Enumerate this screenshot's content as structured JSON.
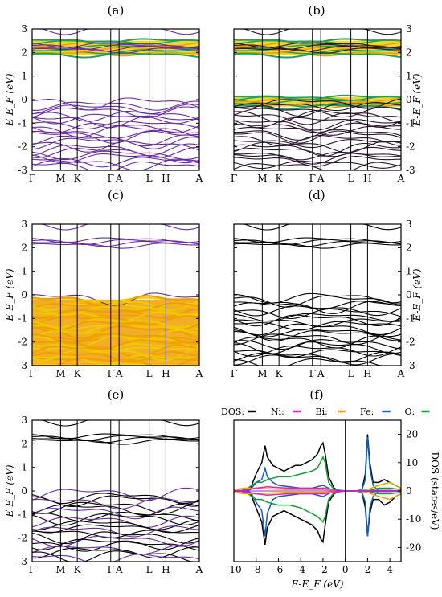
{
  "figure_labels": [
    "(a)",
    "(b)",
    "(c)",
    "(d)",
    "(e)",
    "(f)"
  ],
  "band_panels": {
    "ylabel": "E-E_F (eV)",
    "yticks": [
      "3",
      "2",
      "1",
      "0",
      "-1",
      "-2",
      "-3"
    ],
    "kpath_labels": [
      "Γ",
      "M",
      "K",
      "Γ",
      "A",
      "L",
      "H",
      "A"
    ]
  },
  "dos_panel": {
    "xlabel": "E-E_F (eV)",
    "ylabel": "DOS (states/eV)",
    "xticks": [
      "-10",
      "-8",
      "-6",
      "-4",
      "-2",
      "0",
      "2",
      "4"
    ],
    "yticks": [
      "20",
      "10",
      "0",
      "-10",
      "-20"
    ],
    "legend": [
      {
        "label": "DOS:",
        "color": "#000000"
      },
      {
        "label": "Ni:",
        "color": "#e020c0"
      },
      {
        "label": "Bi:",
        "color": "#f0a000"
      },
      {
        "label": "Fe:",
        "color": "#1060c0"
      },
      {
        "label": "O:",
        "color": "#10a030"
      }
    ]
  },
  "chart_data": [
    {
      "type": "line",
      "panel": "(a)",
      "description": "band structure, Bi/O weight highlighted in conduction bands",
      "xlabel": "",
      "ylabel": "E-E_F (eV)",
      "ylim": [
        -3,
        3
      ],
      "x_ticks": [
        "Γ",
        "M",
        "K",
        "Γ",
        "A",
        "L",
        "H",
        "A"
      ],
      "band_color": "#6a2ca8",
      "highlight": {
        "region": "conduction",
        "range": [
          1.9,
          2.5
        ],
        "colors": [
          "#f0d000",
          "#20a060"
        ]
      }
    },
    {
      "type": "line",
      "panel": "(b)",
      "xlabel": "",
      "ylabel": "E-E_F (eV)",
      "ylim": [
        -3,
        3
      ],
      "x_ticks": [
        "Γ",
        "M",
        "K",
        "Γ",
        "A",
        "L",
        "H",
        "A"
      ],
      "band_color": "#2a1530",
      "highlight": {
        "region": "conduction+valence-top",
        "range": [
          1.9,
          2.5
        ],
        "range2": [
          -0.3,
          0.1
        ],
        "colors": [
          "#f0d000",
          "#20a060"
        ]
      }
    },
    {
      "type": "line",
      "panel": "(c)",
      "xlabel": "",
      "ylabel": "E-E_F (eV)",
      "ylim": [
        -3,
        3
      ],
      "x_ticks": [
        "Γ",
        "M",
        "K",
        "Γ",
        "A",
        "L",
        "H",
        "A"
      ],
      "band_color": "#6a2ca8",
      "highlight": {
        "region": "valence",
        "range": [
          -3,
          -0.2
        ],
        "colors": [
          "#f0a000",
          "#f0d000"
        ]
      }
    },
    {
      "type": "line",
      "panel": "(d)",
      "xlabel": "",
      "ylabel": "E-E_F (eV)",
      "ylim": [
        -3,
        3
      ],
      "x_ticks": [
        "Γ",
        "M",
        "K",
        "Γ",
        "A",
        "L",
        "H",
        "A"
      ],
      "band_color": "#000000"
    },
    {
      "type": "line",
      "panel": "(e)",
      "xlabel": "",
      "ylabel": "E-E_F (eV)",
      "ylim": [
        -3,
        3
      ],
      "x_ticks": [
        "Γ",
        "M",
        "K",
        "Γ",
        "A",
        "L",
        "H",
        "A"
      ],
      "band_color": "#000000",
      "accent_color": "#6a2ca8"
    },
    {
      "type": "line",
      "panel": "(f)",
      "xlabel": "E-E_F (eV)",
      "ylabel": "DOS (states/eV)",
      "xlim": [
        -10,
        5
      ],
      "ylim": [
        -25,
        25
      ],
      "series": [
        {
          "name": "DOS",
          "color": "#000000",
          "x": [
            -10,
            -9,
            -8.5,
            -8,
            -7.5,
            -7.2,
            -7,
            -6.5,
            -6,
            -5.5,
            -5,
            -4.5,
            -4,
            -3.5,
            -3,
            -2.5,
            -2.2,
            -2,
            -1.8,
            -1.5,
            -1,
            -0.5,
            0,
            0.5,
            1,
            1.5,
            1.8,
            2,
            2.2,
            2.5,
            3,
            3.5,
            4,
            4.5,
            5
          ],
          "up": [
            0,
            0.3,
            1,
            6,
            10,
            16,
            12,
            9,
            8,
            7,
            8,
            9,
            9,
            10,
            11,
            13,
            16,
            17,
            13,
            5,
            1,
            0,
            0,
            0,
            0,
            0.5,
            6,
            20,
            10,
            3,
            3,
            4,
            3,
            2,
            1
          ],
          "down": [
            0,
            0.3,
            1,
            6,
            11,
            19,
            13,
            9,
            8,
            7,
            8,
            9,
            10,
            11,
            12,
            14,
            17,
            18,
            12,
            4,
            1,
            0,
            0,
            0,
            0,
            0.5,
            6,
            16,
            8,
            3,
            3,
            5,
            4,
            2,
            1
          ]
        },
        {
          "name": "Fe",
          "color": "#1060c0",
          "x": [
            -10,
            -9,
            -8.5,
            -8,
            -7.5,
            -7.2,
            -7,
            -6.5,
            -6,
            -5,
            -4,
            -3,
            -2.5,
            -2,
            -1.5,
            -1,
            0,
            1,
            1.5,
            1.8,
            2,
            2.2,
            2.5,
            3,
            4,
            5
          ],
          "up": [
            0,
            0,
            0.5,
            3,
            4,
            8,
            5,
            3,
            2,
            1.5,
            1,
            1,
            1.5,
            2,
            1,
            0,
            0,
            0,
            0.5,
            4,
            19,
            8,
            2,
            0,
            0,
            0
          ],
          "down": [
            0,
            0,
            0.5,
            4,
            7,
            16,
            8,
            3,
            2,
            1.5,
            1,
            1,
            1.5,
            2,
            1,
            0,
            0,
            0,
            0.5,
            4,
            16,
            6,
            2,
            0,
            0,
            0
          ]
        },
        {
          "name": "O",
          "color": "#10a030",
          "x": [
            -10,
            -9,
            -8,
            -7.5,
            -7,
            -6,
            -5,
            -4,
            -3,
            -2.5,
            -2,
            -1.8,
            -1.5,
            -1,
            0,
            2,
            3,
            4,
            5
          ],
          "up": [
            0,
            0.3,
            3,
            3,
            4,
            5,
            5,
            6,
            7,
            8,
            12,
            10,
            3,
            0.5,
            0,
            0,
            1,
            1,
            0.5
          ],
          "down": [
            0,
            0.3,
            3,
            3,
            4,
            5,
            5,
            6,
            8,
            9,
            11,
            9,
            3,
            0.5,
            0,
            0,
            1,
            1,
            0.5
          ]
        },
        {
          "name": "Bi",
          "color": "#f0a000",
          "x": [
            -10,
            -9,
            -8,
            -7,
            -6,
            -5,
            -4,
            -3,
            -2,
            -1,
            0,
            1,
            2,
            3,
            4,
            5
          ],
          "up": [
            0.5,
            1,
            1,
            0.8,
            0.6,
            0.5,
            0.5,
            0.5,
            0.5,
            0.3,
            0,
            0,
            0.5,
            2,
            3,
            1
          ],
          "down": [
            0.5,
            1,
            1,
            0.8,
            0.6,
            0.5,
            0.5,
            0.5,
            0.5,
            0.3,
            0,
            0,
            0.5,
            2,
            3,
            1
          ]
        },
        {
          "name": "Ni",
          "color": "#e020c0",
          "x": [
            -10,
            -9,
            -8,
            -7,
            -6,
            -5,
            -4,
            -3,
            -2,
            -1,
            0,
            1,
            2,
            3,
            4,
            5
          ],
          "up": [
            0,
            0.3,
            1,
            1.5,
            1.2,
            1,
            1,
            1,
            1,
            0.5,
            0,
            0,
            0,
            0.2,
            0.2,
            0
          ],
          "down": [
            0,
            0.3,
            1,
            1.5,
            1.2,
            1,
            1,
            1,
            1,
            0.5,
            0,
            0,
            0,
            0.2,
            0.2,
            0
          ]
        }
      ]
    }
  ]
}
